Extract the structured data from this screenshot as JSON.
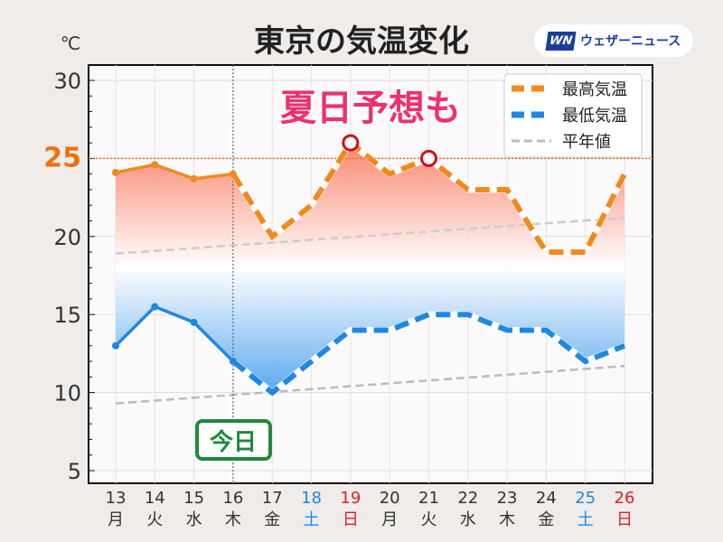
{
  "chart_data": {
    "type": "line",
    "title": "東京の気温変化",
    "unit_label": "℃",
    "ylim": [
      4,
      31
    ],
    "yticks": [
      5,
      10,
      15,
      20,
      25,
      30
    ],
    "highlight_tick": 25,
    "categories": [
      "13",
      "14",
      "15",
      "16",
      "17",
      "18",
      "19",
      "20",
      "21",
      "22",
      "23",
      "24",
      "25",
      "26"
    ],
    "weekdays": [
      "月",
      "火",
      "水",
      "木",
      "金",
      "土",
      "日",
      "月",
      "火",
      "水",
      "木",
      "金",
      "土",
      "日"
    ],
    "today_index": 3,
    "series": [
      {
        "name": "最高気温",
        "color": "#f08a1e",
        "values": [
          24.1,
          24.6,
          23.7,
          24.0,
          20,
          22,
          26,
          24,
          25,
          23,
          23,
          19,
          19,
          24
        ]
      },
      {
        "name": "最低気温",
        "color": "#1e88e5",
        "values": [
          13,
          15.5,
          14.5,
          12,
          10,
          12,
          14,
          14,
          15,
          15,
          14,
          14,
          12,
          13
        ]
      },
      {
        "name": "平年値",
        "color": "#bbbbbb",
        "high": [
          18.9,
          21.2
        ],
        "low": [
          9.3,
          11.7
        ]
      }
    ],
    "annotations": {
      "summer_day": "夏日予想も",
      "today": "今日"
    },
    "summer_day_indices": [
      6,
      8
    ],
    "legend_position": "top-right"
  },
  "logo": {
    "mark": "WN",
    "text": "ウェザーニュース"
  }
}
